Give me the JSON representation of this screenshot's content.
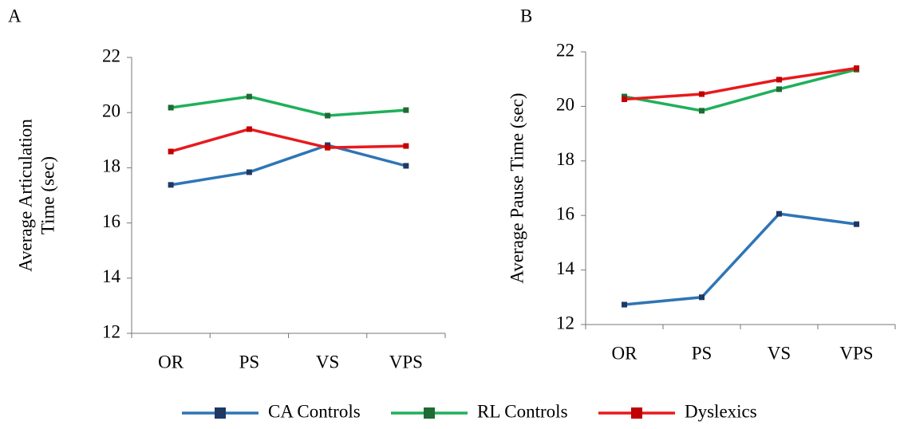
{
  "chart_data": [
    {
      "type": "line",
      "panel": "A",
      "y_label": [
        "Average Articulation",
        "Time (sec)"
      ],
      "categories": [
        "OR",
        "PS",
        "VS",
        "VPS"
      ],
      "series": [
        {
          "name": "CA Controls",
          "color": "#2e75b6",
          "marker_color": "#1f3864",
          "values": [
            17.38,
            17.84,
            18.82,
            18.07
          ]
        },
        {
          "name": "RL Controls",
          "color": "#1fb05a",
          "marker_color": "#1e6b34",
          "values": [
            20.18,
            20.58,
            19.89,
            20.09
          ]
        },
        {
          "name": "Dyslexics",
          "color": "#e8191c",
          "marker_color": "#c00000",
          "values": [
            18.59,
            19.4,
            18.73,
            18.79
          ]
        }
      ],
      "ylim": [
        12,
        22
      ],
      "yticks": [
        12,
        14,
        16,
        18,
        20,
        22
      ]
    },
    {
      "type": "line",
      "panel": "B",
      "y_label": [
        "Average Pause Time (sec)"
      ],
      "categories": [
        "OR",
        "PS",
        "VS",
        "VPS"
      ],
      "series": [
        {
          "name": "CA Controls",
          "color": "#2e75b6",
          "marker_color": "#1f3864",
          "values": [
            12.73,
            13.0,
            16.06,
            15.68
          ]
        },
        {
          "name": "RL Controls",
          "color": "#1fb05a",
          "marker_color": "#1e6b34",
          "values": [
            20.36,
            19.84,
            20.63,
            21.35
          ]
        },
        {
          "name": "Dyslexics",
          "color": "#e8191c",
          "marker_color": "#c00000",
          "values": [
            20.26,
            20.45,
            20.98,
            21.4
          ]
        }
      ],
      "ylim": [
        12,
        22
      ],
      "yticks": [
        12,
        14,
        16,
        18,
        20,
        22
      ]
    }
  ]
}
